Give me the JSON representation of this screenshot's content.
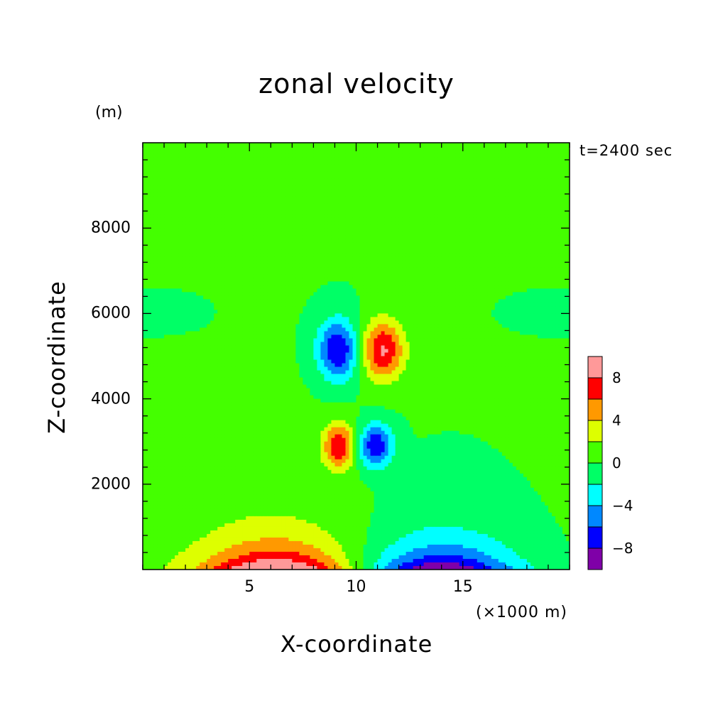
{
  "chart_data": {
    "type": "heatmap",
    "title": "zonal velocity",
    "xlabel": "X-coordinate",
    "ylabel": "Z-coordinate",
    "x_unit": "(×1000 m)",
    "y_unit": "(m)",
    "time_label": "t=2400 sec",
    "xlim": [
      0,
      20
    ],
    "ylim": [
      0,
      10000
    ],
    "x_ticks": [
      {
        "value": 5,
        "label": "5"
      },
      {
        "value": 10,
        "label": "10"
      },
      {
        "value": 15,
        "label": "15"
      }
    ],
    "y_ticks": [
      {
        "value": 2000,
        "label": "2000"
      },
      {
        "value": 4000,
        "label": "4000"
      },
      {
        "value": 6000,
        "label": "6000"
      },
      {
        "value": 8000,
        "label": "8000"
      }
    ],
    "colorbar": {
      "levels": [
        -10,
        -8,
        -6,
        -4,
        -2,
        0,
        2,
        4,
        6,
        8,
        10
      ],
      "labels": [
        {
          "value": -8,
          "label": "−8"
        },
        {
          "value": -4,
          "label": "−4"
        },
        {
          "value": 0,
          "label": "0"
        },
        {
          "value": 4,
          "label": "4"
        },
        {
          "value": 8,
          "label": "8"
        }
      ],
      "colors": [
        "#7f00a8",
        "#0000ff",
        "#0088ff",
        "#00ffff",
        "#00ff66",
        "#44ff00",
        "#ddff00",
        "#ff9900",
        "#ff0000",
        "#ff9999"
      ]
    },
    "features": [
      {
        "name": "upper negative core",
        "x": 9.1,
        "z": 5200,
        "min_value": -7
      },
      {
        "name": "upper positive core",
        "x": 11.2,
        "z": 5200,
        "max_value": 7
      },
      {
        "name": "lower positive core",
        "x": 9.2,
        "z": 2900,
        "max_value": 7
      },
      {
        "name": "lower negative core",
        "x": 10.8,
        "z": 2900,
        "min_value": -7
      },
      {
        "name": "surface positive region",
        "x": 6.3,
        "z": 200,
        "max_value": 7
      },
      {
        "name": "surface negative region",
        "x": 14.0,
        "z": 200,
        "min_value": -7
      }
    ]
  }
}
